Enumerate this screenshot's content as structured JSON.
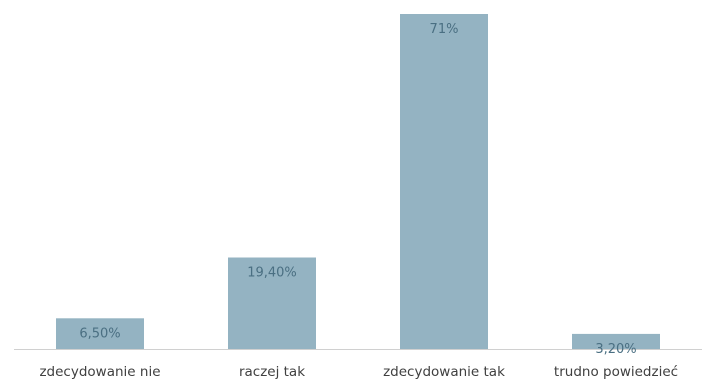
{
  "chart_data": {
    "type": "bar",
    "categories": [
      "zdecydowanie nie",
      "raczej tak",
      "zdecydowanie tak",
      "trudno powiedzieć"
    ],
    "values": [
      6.5,
      19.4,
      71,
      3.2
    ],
    "data_labels": [
      "6,50%",
      "19,40%",
      "71%",
      "3,20%"
    ],
    "title": "",
    "xlabel": "",
    "ylabel": "",
    "ylim": [
      0,
      71
    ],
    "grid": false,
    "legend": "none",
    "bar_color": "#94b3c2",
    "label_color": "#4a6f82",
    "category_color": "#404040",
    "axis_color": "#d0d0d0"
  }
}
